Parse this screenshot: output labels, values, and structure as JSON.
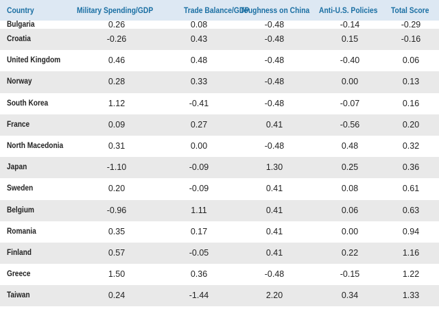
{
  "columns": [
    "Country",
    "Military Spending/GDP",
    "Trade Balance/GDP",
    "Toughness on China",
    "Anti-U.S. Policies",
    "Total Score"
  ],
  "rows": [
    {
      "country": "Bulgaria",
      "military": "0.26",
      "trade": "0.08",
      "china": "-0.48",
      "anti_us": "-0.14",
      "total": "-0.29"
    },
    {
      "country": "Croatia",
      "military": "-0.26",
      "trade": "0.43",
      "china": "-0.48",
      "anti_us": "0.15",
      "total": "-0.16"
    },
    {
      "country": "United Kingdom",
      "military": "0.46",
      "trade": "0.48",
      "china": "-0.48",
      "anti_us": "-0.40",
      "total": "0.06"
    },
    {
      "country": "Norway",
      "military": "0.28",
      "trade": "0.33",
      "china": "-0.48",
      "anti_us": "0.00",
      "total": "0.13"
    },
    {
      "country": "South Korea",
      "military": "1.12",
      "trade": "-0.41",
      "china": "-0.48",
      "anti_us": "-0.07",
      "total": "0.16"
    },
    {
      "country": "France",
      "military": "0.09",
      "trade": "0.27",
      "china": "0.41",
      "anti_us": "-0.56",
      "total": "0.20"
    },
    {
      "country": "North Macedonia",
      "military": "0.31",
      "trade": "0.00",
      "china": "-0.48",
      "anti_us": "0.48",
      "total": "0.32"
    },
    {
      "country": "Japan",
      "military": "-1.10",
      "trade": "-0.09",
      "china": "1.30",
      "anti_us": "0.25",
      "total": "0.36"
    },
    {
      "country": "Sweden",
      "military": "0.20",
      "trade": "-0.09",
      "china": "0.41",
      "anti_us": "0.08",
      "total": "0.61"
    },
    {
      "country": "Belgium",
      "military": "-0.96",
      "trade": "1.11",
      "china": "0.41",
      "anti_us": "0.06",
      "total": "0.63"
    },
    {
      "country": "Romania",
      "military": "0.35",
      "trade": "0.17",
      "china": "0.41",
      "anti_us": "0.00",
      "total": "0.94"
    },
    {
      "country": "Finland",
      "military": "0.57",
      "trade": "-0.05",
      "china": "0.41",
      "anti_us": "0.22",
      "total": "1.16"
    },
    {
      "country": "Greece",
      "military": "1.50",
      "trade": "0.36",
      "china": "-0.48",
      "anti_us": "-0.15",
      "total": "1.22"
    },
    {
      "country": "Taiwan",
      "military": "0.24",
      "trade": "-1.44",
      "china": "2.20",
      "anti_us": "0.34",
      "total": "1.33"
    }
  ],
  "colors": {
    "header_bg": "#dde8f3",
    "header_text": "#1a6fa3",
    "row_shade": "#e9e9e9",
    "cell_text": "#222222"
  }
}
